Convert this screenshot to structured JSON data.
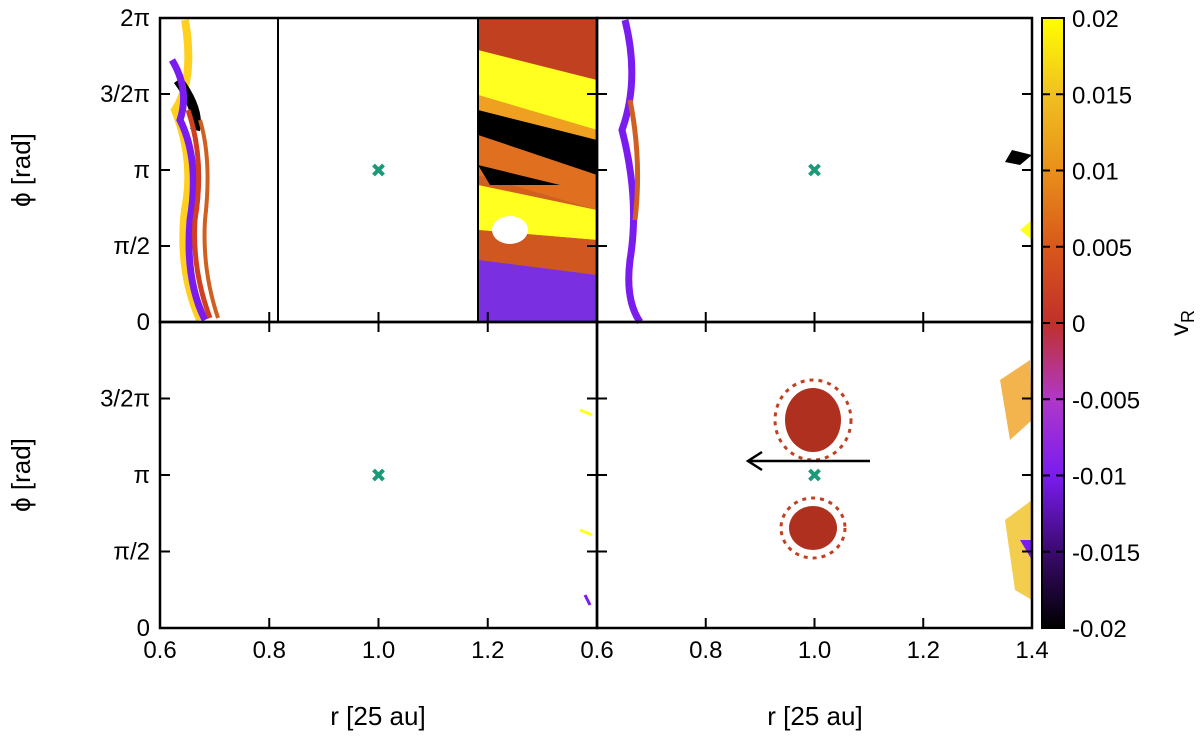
{
  "chart_data": {
    "type": "heatmap",
    "layout": "2x2 panels sharing axes",
    "x_axis": {
      "label": "r [25 au]",
      "ticks": [
        {
          "value": 0.6,
          "label": "0.6"
        },
        {
          "value": 0.8,
          "label": "0.8"
        },
        {
          "value": 1.0,
          "label": "1.0"
        },
        {
          "value": 1.2,
          "label": "1.2"
        },
        {
          "value": 1.4,
          "label": "1.4"
        }
      ],
      "range": [
        0.6,
        1.4
      ]
    },
    "y_axis": {
      "label": "ϕ [rad]",
      "ticks_top": [
        {
          "value": 0,
          "label": "0"
        },
        {
          "value": 1.5708,
          "label": "π/2"
        },
        {
          "value": 3.1416,
          "label": "π"
        },
        {
          "value": 4.7124,
          "label": "3/2π"
        },
        {
          "value": 6.2832,
          "label": "2π"
        }
      ],
      "ticks_bottom": [
        {
          "value": 0,
          "label": "0"
        },
        {
          "value": 1.5708,
          "label": "π/2"
        },
        {
          "value": 3.1416,
          "label": "π"
        },
        {
          "value": 4.7124,
          "label": "3/2π"
        }
      ],
      "range": [
        0,
        6.2832
      ]
    },
    "colorbar": {
      "label": "v",
      "label_sub": "R",
      "range": [
        -0.02,
        0.02
      ],
      "ticks": [
        {
          "value": 0.02,
          "label": "0.02"
        },
        {
          "value": 0.015,
          "label": "0.015"
        },
        {
          "value": 0.01,
          "label": "0.01"
        },
        {
          "value": 0.005,
          "label": "0.005"
        },
        {
          "value": 0,
          "label": "0"
        },
        {
          "value": -0.005,
          "label": "-0.005"
        },
        {
          "value": -0.01,
          "label": "-0.01"
        },
        {
          "value": -0.015,
          "label": "-0.015"
        },
        {
          "value": -0.02,
          "label": "-0.02"
        }
      ],
      "colors": [
        "#000000",
        "#3a0a6e",
        "#7a1cf0",
        "#b038c8",
        "#c0302a",
        "#d8581a",
        "#e8901a",
        "#f0c020",
        "#ffff00"
      ]
    },
    "planet_marker": {
      "r": 1.0,
      "phi": 3.1416,
      "color": "#1a9a78",
      "symbol": "x"
    },
    "panels": [
      {
        "id": "top-left",
        "vertical_lines_r": [
          0.815,
          1.175
        ]
      },
      {
        "id": "top-right"
      },
      {
        "id": "bottom-left"
      },
      {
        "id": "bottom-right",
        "arrow": {
          "from_r": 1.2,
          "to_r": 0.87,
          "phi": 3.1416
        }
      }
    ]
  }
}
